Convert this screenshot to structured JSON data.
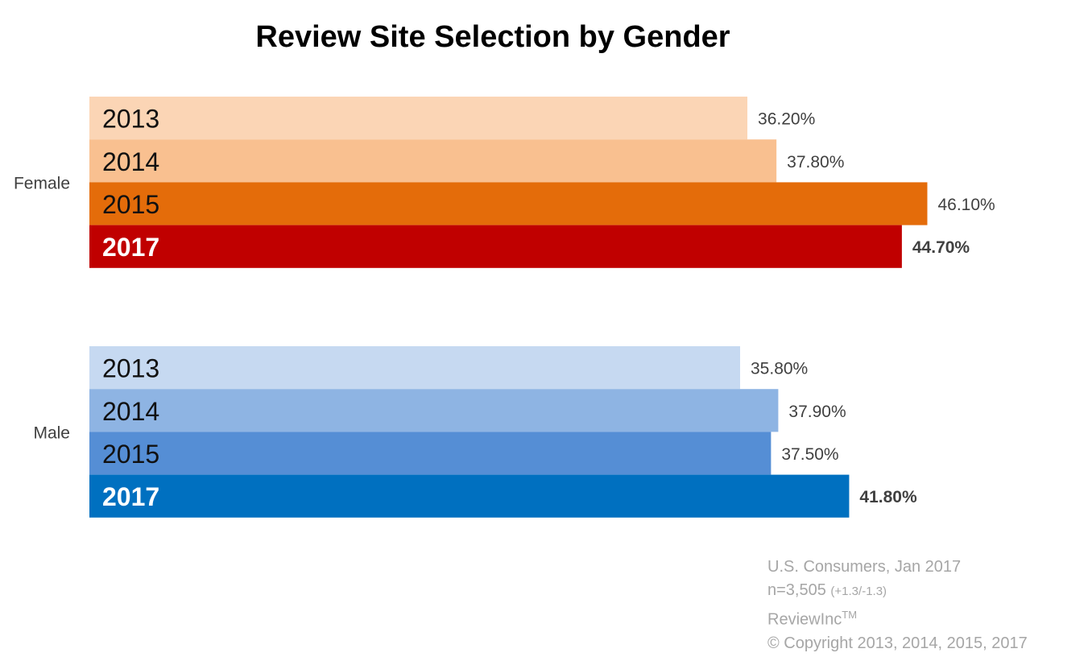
{
  "chart_data": {
    "type": "bar",
    "orientation": "horizontal",
    "title": "Review Site Selection by Gender",
    "categories": [
      "Female",
      "Male"
    ],
    "series": [
      {
        "name": "2013",
        "values": [
          36.2,
          35.8
        ],
        "labels": [
          "36.20%",
          "35.80%"
        ],
        "highlight": false,
        "colors": [
          "#fbd5b5",
          "#c6d9f1"
        ]
      },
      {
        "name": "2014",
        "values": [
          37.8,
          37.9
        ],
        "labels": [
          "37.80%",
          "37.90%"
        ],
        "highlight": false,
        "colors": [
          "#f9c090",
          "#8eb4e3"
        ]
      },
      {
        "name": "2015",
        "values": [
          46.1,
          37.5
        ],
        "labels": [
          "46.10%",
          "37.50%"
        ],
        "highlight": false,
        "colors": [
          "#e46c0a",
          "#558ed5"
        ]
      },
      {
        "name": "2017",
        "values": [
          44.7,
          41.8
        ],
        "labels": [
          "44.70%",
          "41.80%"
        ],
        "highlight": true,
        "colors": [
          "#c00000",
          "#0070c0"
        ]
      }
    ],
    "xlim": [
      0,
      50
    ],
    "grid": false,
    "legend": "none"
  },
  "footer": {
    "line1": "U.S. Consumers, Jan 2017",
    "line2_main": "n=3,505",
    "line2_small": "(+1.3/-1.3)",
    "line3_main": "ReviewInc",
    "line3_sup": "TM",
    "line4": "© Copyright 2013, 2014, 2015, 2017"
  }
}
